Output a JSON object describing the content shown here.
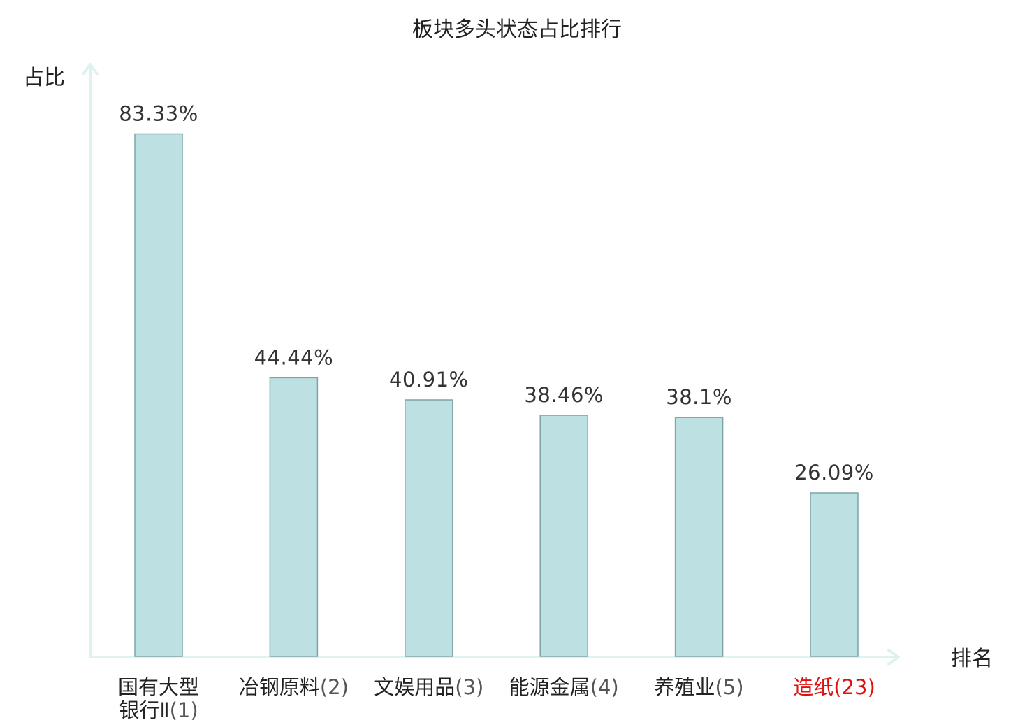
{
  "chart_data": {
    "type": "bar",
    "title": "板块多头状态占比排行",
    "ylabel": "占比",
    "xlabel": "排名",
    "ylim": [
      0,
      100
    ],
    "grid": false,
    "legend": "none",
    "categories": [
      {
        "lines": [
          "国有大型",
          "银行Ⅱ"
        ],
        "rank": "(1)",
        "highlight": false
      },
      {
        "lines": [
          "冶钢原料"
        ],
        "rank": "(2)",
        "highlight": false
      },
      {
        "lines": [
          "文娱用品"
        ],
        "rank": "(3)",
        "highlight": false
      },
      {
        "lines": [
          "能源金属"
        ],
        "rank": "(4)",
        "highlight": false
      },
      {
        "lines": [
          "养殖业"
        ],
        "rank": "(5)",
        "highlight": false
      },
      {
        "lines": [
          "造纸"
        ],
        "rank": "(23)",
        "highlight": true
      }
    ],
    "values": [
      83.33,
      44.44,
      40.91,
      38.46,
      38.1,
      26.09
    ],
    "value_labels": [
      "83.33%",
      "44.44%",
      "40.91%",
      "38.46%",
      "38.1%",
      "26.09%"
    ]
  },
  "colors": {
    "bar_fill": "#bde0e3",
    "bar_stroke": "#7fa3a6",
    "axis": "#dff2ef",
    "text": "#222222",
    "value_text": "#333333",
    "highlight": "#e01010"
  }
}
